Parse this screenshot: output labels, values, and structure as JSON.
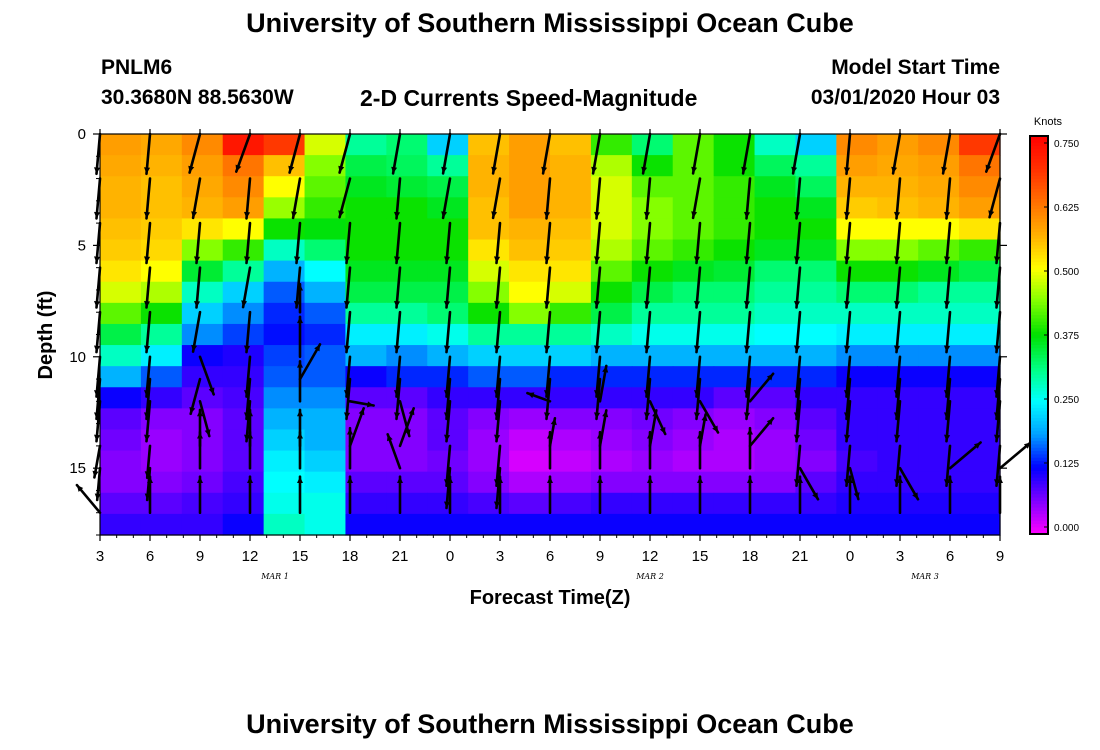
{
  "title_top": "University of Southern Mississippi Ocean Cube",
  "title_bottom": "University of Southern Mississippi Ocean Cube",
  "station": {
    "id": "PNLM6",
    "coords": "30.3680N 88.5630W"
  },
  "subtitle": "2-D Currents Speed-Magnitude",
  "model_start": {
    "label": "Model Start Time",
    "value": "03/01/2020 Hour 03"
  },
  "chart_data": {
    "type": "heatmap",
    "title": "2-D Currents Speed-Magnitude",
    "xlabel": "Forecast Time(Z)",
    "ylabel": "Depth (ft)",
    "x_ticks": [
      "3",
      "6",
      "9",
      "12",
      "15",
      "18",
      "21",
      "0",
      "3",
      "6",
      "9",
      "12",
      "15",
      "18",
      "21",
      "0",
      "3",
      "6",
      "9"
    ],
    "x_tick_hours": [
      0,
      3,
      6,
      9,
      12,
      15,
      18,
      21,
      24,
      27,
      30,
      33,
      36,
      39,
      42,
      45,
      48,
      51,
      54
    ],
    "date_labels": [
      {
        "text": "MAR 1",
        "hour": 10.5
      },
      {
        "text": "MAR 2",
        "hour": 33
      },
      {
        "text": "MAR 3",
        "hour": 49.5
      }
    ],
    "xlim_hours": [
      0,
      54
    ],
    "y_ticks": [
      "0",
      "5",
      "10",
      "15"
    ],
    "y_tick_values": [
      0,
      5,
      10,
      15
    ],
    "ylim": [
      0,
      18
    ],
    "colorbar": {
      "label": "Knots",
      "ticks": [
        "0.750",
        "0.625",
        "0.500",
        "0.375",
        "0.250",
        "0.125",
        "0.000"
      ],
      "tick_values": [
        0.75,
        0.625,
        0.5,
        0.375,
        0.25,
        0.125,
        0.0
      ],
      "range": [
        0.0,
        0.75
      ],
      "colors": [
        "#ff00ff",
        "#7f00ff",
        "#0000ff",
        "#00a0ff",
        "#00ffff",
        "#00ff80",
        "#00e000",
        "#80ff00",
        "#ffff00",
        "#ffb000",
        "#ff7000",
        "#ff3000",
        "#ff0000"
      ]
    },
    "depth_rows": [
      0,
      1,
      2,
      3,
      4,
      5,
      6,
      7,
      8,
      9,
      10,
      11,
      12,
      13,
      14,
      15,
      16,
      17,
      18
    ],
    "series": [
      {
        "name": "00",
        "values": [
          0.58,
          0.57,
          0.6,
          0.72,
          0.68,
          0.48,
          0.3,
          0.32,
          0.22,
          0.55,
          0.58,
          0.55,
          0.4,
          0.32,
          0.42,
          0.38,
          0.28,
          0.22,
          0.6,
          0.58,
          0.6,
          0.68
        ]
      },
      {
        "name": "01",
        "values": [
          0.57,
          0.56,
          0.58,
          0.62,
          0.55,
          0.44,
          0.34,
          0.33,
          0.3,
          0.56,
          0.58,
          0.56,
          0.46,
          0.38,
          0.42,
          0.38,
          0.33,
          0.3,
          0.58,
          0.57,
          0.58,
          0.62
        ]
      },
      {
        "name": "02",
        "values": [
          0.56,
          0.55,
          0.57,
          0.6,
          0.5,
          0.42,
          0.36,
          0.35,
          0.34,
          0.56,
          0.58,
          0.56,
          0.48,
          0.42,
          0.42,
          0.4,
          0.36,
          0.33,
          0.56,
          0.56,
          0.57,
          0.6
        ]
      },
      {
        "name": "03",
        "values": [
          0.56,
          0.55,
          0.56,
          0.58,
          0.45,
          0.4,
          0.38,
          0.38,
          0.36,
          0.55,
          0.58,
          0.56,
          0.48,
          0.44,
          0.42,
          0.4,
          0.38,
          0.36,
          0.54,
          0.55,
          0.56,
          0.58
        ]
      },
      {
        "name": "04",
        "values": [
          0.55,
          0.54,
          0.52,
          0.5,
          0.38,
          0.37,
          0.38,
          0.38,
          0.38,
          0.55,
          0.56,
          0.55,
          0.48,
          0.44,
          0.42,
          0.4,
          0.38,
          0.38,
          0.5,
          0.5,
          0.5,
          0.52
        ]
      },
      {
        "name": "05",
        "values": [
          0.54,
          0.53,
          0.44,
          0.4,
          0.28,
          0.32,
          0.38,
          0.38,
          0.38,
          0.52,
          0.55,
          0.54,
          0.46,
          0.42,
          0.4,
          0.38,
          0.36,
          0.36,
          0.44,
          0.44,
          0.42,
          0.4
        ]
      },
      {
        "name": "06",
        "values": [
          0.52,
          0.5,
          0.35,
          0.3,
          0.2,
          0.25,
          0.36,
          0.36,
          0.36,
          0.48,
          0.52,
          0.52,
          0.42,
          0.38,
          0.36,
          0.35,
          0.32,
          0.32,
          0.38,
          0.38,
          0.36,
          0.34
        ]
      },
      {
        "name": "07",
        "values": [
          0.48,
          0.46,
          0.28,
          0.22,
          0.16,
          0.2,
          0.34,
          0.34,
          0.34,
          0.44,
          0.5,
          0.48,
          0.38,
          0.34,
          0.32,
          0.32,
          0.3,
          0.3,
          0.32,
          0.32,
          0.3,
          0.3
        ]
      },
      {
        "name": "08",
        "values": [
          0.42,
          0.38,
          0.22,
          0.18,
          0.14,
          0.16,
          0.3,
          0.3,
          0.32,
          0.38,
          0.44,
          0.4,
          0.34,
          0.3,
          0.3,
          0.3,
          0.28,
          0.28,
          0.28,
          0.28,
          0.28,
          0.28
        ]
      },
      {
        "name": "09",
        "values": [
          0.34,
          0.3,
          0.18,
          0.15,
          0.13,
          0.14,
          0.24,
          0.24,
          0.26,
          0.3,
          0.3,
          0.3,
          0.28,
          0.26,
          0.26,
          0.26,
          0.25,
          0.25,
          0.24,
          0.24,
          0.24,
          0.24
        ]
      },
      {
        "name": "10",
        "values": [
          0.28,
          0.24,
          0.12,
          0.11,
          0.15,
          0.16,
          0.2,
          0.18,
          0.2,
          0.22,
          0.22,
          0.22,
          0.2,
          0.2,
          0.2,
          0.2,
          0.2,
          0.2,
          0.18,
          0.18,
          0.18,
          0.18
        ]
      },
      {
        "name": "11",
        "values": [
          0.2,
          0.16,
          0.1,
          0.1,
          0.16,
          0.16,
          0.12,
          0.14,
          0.14,
          0.16,
          0.16,
          0.14,
          0.14,
          0.14,
          0.14,
          0.14,
          0.14,
          0.14,
          0.12,
          0.12,
          0.12,
          0.12
        ]
      },
      {
        "name": "12",
        "values": [
          0.12,
          0.1,
          0.08,
          0.09,
          0.18,
          0.18,
          0.08,
          0.08,
          0.1,
          0.1,
          0.1,
          0.1,
          0.1,
          0.1,
          0.1,
          0.08,
          0.08,
          0.1,
          0.1,
          0.1,
          0.1,
          0.1
        ]
      },
      {
        "name": "13",
        "values": [
          0.08,
          0.06,
          0.06,
          0.08,
          0.2,
          0.2,
          0.06,
          0.06,
          0.08,
          0.06,
          0.05,
          0.06,
          0.06,
          0.07,
          0.06,
          0.05,
          0.06,
          0.08,
          0.1,
          0.1,
          0.1,
          0.1
        ]
      },
      {
        "name": "14",
        "values": [
          0.07,
          0.05,
          0.06,
          0.08,
          0.22,
          0.2,
          0.06,
          0.06,
          0.08,
          0.05,
          0.03,
          0.04,
          0.05,
          0.06,
          0.05,
          0.04,
          0.05,
          0.07,
          0.1,
          0.1,
          0.1,
          0.1
        ]
      },
      {
        "name": "15",
        "values": [
          0.06,
          0.05,
          0.06,
          0.08,
          0.24,
          0.22,
          0.06,
          0.06,
          0.07,
          0.05,
          0.02,
          0.03,
          0.04,
          0.05,
          0.04,
          0.04,
          0.05,
          0.06,
          0.09,
          0.1,
          0.1,
          0.1
        ]
      },
      {
        "name": "16",
        "values": [
          0.06,
          0.06,
          0.07,
          0.09,
          0.25,
          0.24,
          0.08,
          0.08,
          0.08,
          0.06,
          0.04,
          0.05,
          0.06,
          0.06,
          0.06,
          0.06,
          0.06,
          0.08,
          0.1,
          0.1,
          0.1,
          0.1
        ]
      },
      {
        "name": "17",
        "values": [
          0.08,
          0.08,
          0.09,
          0.1,
          0.26,
          0.26,
          0.1,
          0.1,
          0.1,
          0.09,
          0.08,
          0.09,
          0.1,
          0.1,
          0.1,
          0.1,
          0.1,
          0.1,
          0.11,
          0.11,
          0.11,
          0.11
        ]
      },
      {
        "name": "18",
        "values": [
          0.1,
          0.1,
          0.1,
          0.12,
          0.28,
          0.26,
          0.12,
          0.12,
          0.12,
          0.12,
          0.12,
          0.12,
          0.12,
          0.12,
          0.12,
          0.12,
          0.12,
          0.12,
          0.12,
          0.12,
          0.12,
          0.12
        ]
      }
    ],
    "vectors": {
      "hours": [
        0,
        3,
        6,
        9,
        12,
        15,
        18,
        21,
        24,
        27,
        30,
        33,
        36,
        39,
        42,
        45,
        48,
        51,
        54
      ],
      "depths": [
        0,
        2,
        4,
        6,
        8,
        10,
        11,
        12,
        14,
        15,
        17
      ],
      "angles_deg": [
        [
          95,
          95,
          105,
          110,
          105,
          105,
          100,
          100,
          100,
          100,
          100,
          100,
          100,
          100,
          100,
          95,
          100,
          100,
          110
        ],
        [
          95,
          95,
          100,
          95,
          100,
          105,
          95,
          100,
          100,
          95,
          95,
          95,
          100,
          95,
          95,
          95,
          95,
          95,
          105
        ],
        [
          95,
          95,
          95,
          95,
          95,
          95,
          95,
          95,
          95,
          95,
          95,
          95,
          95,
          95,
          95,
          95,
          95,
          95,
          95
        ],
        [
          95,
          95,
          95,
          100,
          95,
          95,
          95,
          95,
          95,
          95,
          95,
          95,
          95,
          95,
          95,
          95,
          95,
          95,
          95
        ],
        [
          95,
          95,
          100,
          95,
          -90,
          95,
          95,
          95,
          95,
          95,
          95,
          95,
          95,
          95,
          95,
          95,
          95,
          95,
          95
        ],
        [
          95,
          95,
          70,
          95,
          -90,
          95,
          95,
          95,
          95,
          95,
          95,
          95,
          95,
          95,
          95,
          95,
          95,
          95,
          95
        ],
        [
          95,
          95,
          105,
          95,
          -60,
          95,
          95,
          95,
          95,
          95,
          95,
          95,
          95,
          95,
          95,
          95,
          95,
          95,
          95
        ],
        [
          95,
          95,
          75,
          95,
          -90,
          10,
          75,
          95,
          95,
          -160,
          -80,
          65,
          60,
          -50,
          95,
          95,
          95,
          95,
          95
        ],
        [
          100,
          95,
          -90,
          -90,
          -90,
          -70,
          -70,
          95,
          95,
          -80,
          -80,
          -80,
          -80,
          -50,
          95,
          95,
          95,
          95,
          95
        ],
        [
          95,
          95,
          -90,
          -90,
          -90,
          -90,
          -110,
          95,
          95,
          -90,
          -90,
          -90,
          -90,
          -90,
          60,
          75,
          60,
          -40,
          -40
        ],
        [
          -130,
          -90,
          -90,
          -90,
          -90,
          -90,
          -90,
          -90,
          -90,
          -90,
          -90,
          -90,
          -90,
          -90,
          -90,
          -90,
          -90,
          -90,
          -90
        ]
      ],
      "lengths": [
        [
          1,
          1,
          1,
          1,
          1,
          1,
          1,
          1,
          1,
          1,
          1,
          1,
          1,
          1,
          1,
          1,
          1,
          1,
          1
        ],
        [
          1,
          1,
          1,
          1,
          1,
          1,
          1,
          1,
          1,
          1,
          1,
          1,
          1,
          1,
          1,
          1,
          1,
          1,
          1
        ],
        [
          1,
          1,
          1,
          1,
          1,
          1,
          1,
          1,
          1,
          1,
          1,
          1,
          1,
          1,
          1,
          1,
          1,
          1,
          1
        ],
        [
          1,
          1,
          1,
          1,
          1,
          1,
          1,
          1,
          1,
          1,
          1,
          1,
          1,
          1,
          1,
          1,
          1,
          1,
          1
        ],
        [
          1,
          1,
          1,
          1,
          0.7,
          1,
          1,
          1,
          1,
          1,
          1,
          1,
          1,
          1,
          1,
          1,
          1,
          1,
          1
        ],
        [
          1,
          1,
          1,
          1,
          1,
          1,
          1,
          1,
          1,
          1,
          1,
          1,
          1,
          1,
          1,
          1,
          1,
          1,
          1
        ],
        [
          1,
          1,
          0.9,
          1,
          1,
          1,
          1,
          1,
          1,
          1,
          1,
          1,
          1,
          1,
          1,
          1,
          1,
          1,
          1
        ],
        [
          1,
          1,
          0.9,
          1,
          1,
          0.6,
          0.9,
          1,
          1,
          0.6,
          0.9,
          0.9,
          0.9,
          0.9,
          1,
          1,
          1,
          1,
          1
        ],
        [
          0.8,
          0.8,
          0.9,
          0.9,
          0.9,
          1,
          1,
          1,
          1,
          0.7,
          0.9,
          0.9,
          0.8,
          0.9,
          1,
          1,
          1,
          1,
          1
        ],
        [
          0.8,
          0.8,
          0.9,
          0.9,
          0.9,
          1,
          0.9,
          1,
          1,
          0.9,
          0.9,
          0.9,
          0.9,
          1,
          0.9,
          0.8,
          0.9,
          1,
          1
        ],
        [
          0.9,
          0.9,
          0.9,
          0.9,
          0.9,
          0.9,
          0.9,
          0.9,
          0.9,
          0.9,
          0.9,
          0.9,
          0.9,
          0.9,
          0.9,
          0.9,
          0.9,
          0.9,
          0.9
        ]
      ]
    }
  }
}
